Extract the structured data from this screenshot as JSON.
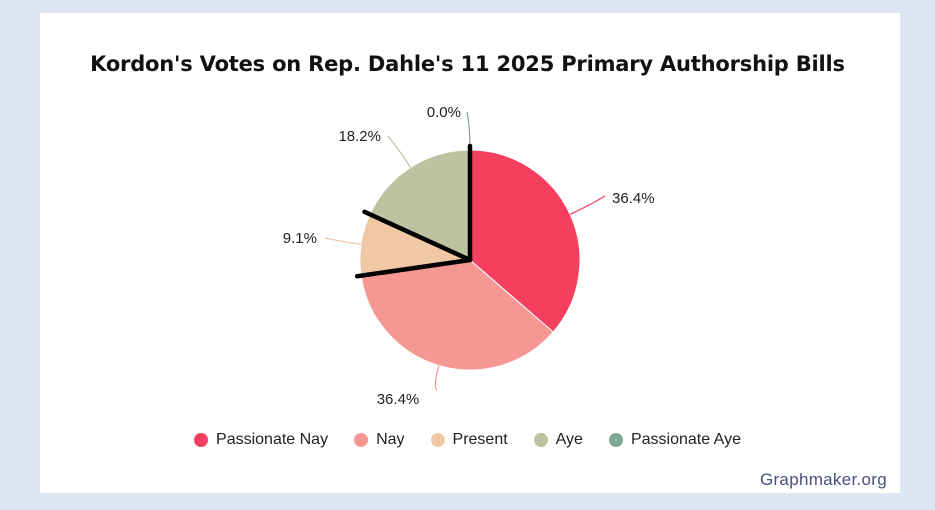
{
  "chart_data": {
    "type": "pie",
    "title": "Kordon's Votes on Rep. Dahle's 11 2025 Primary Authorship Bills",
    "categories": [
      "Passionate Nay",
      "Nay",
      "Present",
      "Aye",
      "Passionate Aye"
    ],
    "values": [
      4,
      4,
      1,
      2,
      0
    ],
    "percent_labels": [
      "36.4%",
      "36.4%",
      "9.1%",
      "18.2%",
      "0.0%"
    ],
    "colors": [
      "#f43f5e",
      "#f59893",
      "#f1c8a6",
      "#bec2a1",
      "#7fa890"
    ],
    "legend_position": "bottom"
  },
  "watermark": "Graphmaker.org"
}
